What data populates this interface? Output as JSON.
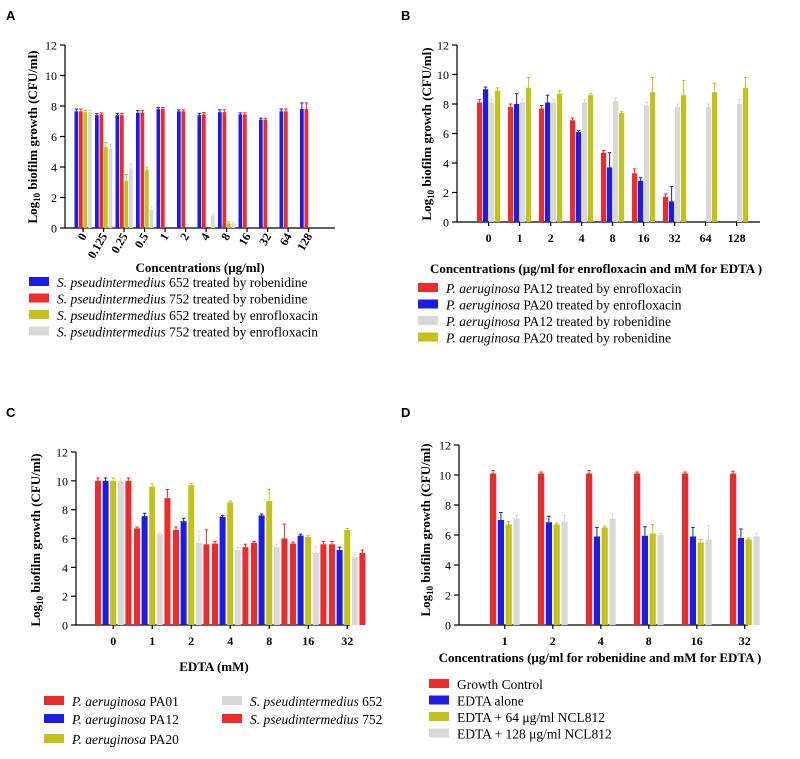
{
  "colors": {
    "red": "#ee2a2a",
    "blue": "#1b1bea",
    "olive": "#c2c21a",
    "gray": "#d8d8d8"
  },
  "chart_data": [
    {
      "panel": "A",
      "type": "bar",
      "title": "",
      "xlabel": "Concentrations (μg/ml)",
      "ylabel": "Log10 biofilm growth (CFU/ml)",
      "ylabel_parts": [
        "Log",
        "10",
        " biofilm growth (CFU/ml)"
      ],
      "ylim": [
        0,
        12
      ],
      "yticks": [
        0,
        2,
        4,
        6,
        8,
        10,
        12
      ],
      "categories": [
        "0",
        "0.125",
        "0.25",
        "0.5",
        "1",
        "2",
        "4",
        "8",
        "16",
        "32",
        "64",
        "128"
      ],
      "series": [
        {
          "name": "S. pseudintermedius 652 treated by robenidine",
          "italic": "S. pseudintermedius",
          "suffix": " 652 treated by robenidine",
          "color": "blue",
          "values": [
            7.65,
            7.4,
            7.4,
            7.55,
            7.8,
            7.65,
            7.4,
            7.6,
            7.45,
            7.1,
            7.65,
            7.8
          ],
          "errors": [
            0.15,
            0.1,
            0.12,
            0.15,
            0.1,
            0.1,
            0.12,
            0.15,
            0.1,
            0.1,
            0.15,
            0.4
          ]
        },
        {
          "name": "S. pseudintermedius 752 treated by robenidine",
          "italic": "S. pseudintermedius",
          "suffix": " 752 treated by robenidine",
          "color": "red",
          "values": [
            7.65,
            7.45,
            7.4,
            7.55,
            7.8,
            7.65,
            7.45,
            7.6,
            7.45,
            7.1,
            7.65,
            7.8
          ],
          "errors": [
            0.15,
            0.1,
            0.12,
            0.15,
            0.1,
            0.1,
            0.12,
            0.15,
            0.1,
            0.1,
            0.15,
            0.4
          ]
        },
        {
          "name": "S. pseudintermedius 652 treated by enrofloxacin",
          "italic": "S. pseudintermedius",
          "suffix": " 652 treated by enrofloxacin",
          "color": "olive",
          "values": [
            7.6,
            5.3,
            3.1,
            3.8,
            0,
            0,
            0,
            0.3,
            0,
            0,
            0,
            0
          ],
          "errors": [
            0.1,
            0.3,
            0.4,
            0.2,
            0,
            0,
            0,
            0.1,
            0,
            0,
            0,
            0
          ]
        },
        {
          "name": "S. pseudintermedius 752 treated by enrofloxacin",
          "italic": "S. pseudintermedius",
          "suffix": " 752 treated by enrofloxacin",
          "color": "gray",
          "values": [
            7.6,
            5.2,
            3.9,
            1.2,
            0,
            0,
            0.8,
            0.3,
            0,
            0,
            0,
            0
          ],
          "errors": [
            0.1,
            0.3,
            0.3,
            0.2,
            0,
            0,
            0.1,
            0.1,
            0,
            0,
            0,
            0
          ]
        }
      ],
      "legend": "below"
    },
    {
      "panel": "B",
      "type": "bar",
      "title": "",
      "xlabel": "Concentrations (μg/ml for enrofloxacin and mM for EDTA )",
      "ylabel": "Log10 biofilm growth (CFU/ml)",
      "ylabel_parts": [
        "Log",
        "10",
        " biofilm growth (CFU/ml)"
      ],
      "ylim": [
        0,
        12
      ],
      "yticks": [
        0,
        2,
        4,
        6,
        8,
        10,
        12
      ],
      "categories": [
        "0",
        "1",
        "2",
        "4",
        "8",
        "16",
        "32",
        "64",
        "128"
      ],
      "series": [
        {
          "name": "P. aeruginosa PA12 treated by enrofloxacin",
          "italic": "P. aeruginosa",
          "suffix": " PA12 treated by enrofloxacin",
          "color": "red",
          "values": [
            8.1,
            7.8,
            7.7,
            6.9,
            4.7,
            3.3,
            1.7,
            0,
            0
          ],
          "errors": [
            0.2,
            0.2,
            0.2,
            0.15,
            0.15,
            0.3,
            0.2,
            0,
            0
          ]
        },
        {
          "name": "P. aeruginosa PA20 treated by enrofloxacin",
          "italic": "P. aeruginosa",
          "suffix": " PA20 treated by enrofloxacin",
          "color": "blue",
          "values": [
            9.0,
            8.0,
            8.1,
            6.1,
            3.7,
            2.8,
            1.4,
            0,
            0
          ],
          "errors": [
            0.15,
            0.7,
            0.5,
            0.1,
            1.0,
            0.2,
            1.0,
            0,
            0
          ]
        },
        {
          "name": "P. aeruginosa PA12 treated by robenidine",
          "italic": "P. aeruginosa",
          "suffix": " PA12 treated by robenidine",
          "color": "gray",
          "values": [
            8.1,
            8.1,
            8.1,
            8.1,
            8.2,
            7.9,
            7.8,
            7.8,
            8.0
          ],
          "errors": [
            0.2,
            0.2,
            0.2,
            0.2,
            0.2,
            0.2,
            0.2,
            0.2,
            0.3
          ]
        },
        {
          "name": "P. aeruginosa PA20 treated by robenidine",
          "italic": "P. aeruginosa",
          "suffix": " PA20 treated by robenidine",
          "color": "olive",
          "values": [
            8.9,
            9.1,
            8.7,
            8.6,
            7.4,
            8.8,
            8.6,
            8.8,
            9.1
          ],
          "errors": [
            0.2,
            0.7,
            0.2,
            0.1,
            0.1,
            1.0,
            1.0,
            0.6,
            0.7
          ]
        }
      ],
      "legend": "below"
    },
    {
      "panel": "C",
      "type": "bar",
      "title": "",
      "xlabel": "EDTA (mM)",
      "ylabel": "Log10 biofilm growth (CFU/ml)",
      "ylabel_parts": [
        "Log",
        "10",
        " biofilm growth (CFU/ml)"
      ],
      "ylim": [
        0,
        12
      ],
      "yticks": [
        0,
        2,
        4,
        6,
        8,
        10,
        12
      ],
      "categories": [
        "0",
        "1",
        "2",
        "4",
        "8",
        "16",
        "32"
      ],
      "series": [
        {
          "name": "P. aeruginosa PA01",
          "italic": "P. aeruginosa",
          "suffix": " PA01",
          "color": "red",
          "values": [
            10.0,
            6.7,
            6.6,
            5.65,
            5.7,
            5.65,
            5.6
          ],
          "errors": [
            0.2,
            0.1,
            0.2,
            0.15,
            0.1,
            0.1,
            0.2
          ]
        },
        {
          "name": "P. aeruginosa PA12",
          "italic": "P. aeruginosa",
          "suffix": " PA12",
          "color": "blue",
          "values": [
            10.0,
            7.55,
            7.2,
            7.5,
            7.6,
            6.2,
            5.2
          ],
          "errors": [
            0.2,
            0.2,
            0.2,
            0.1,
            0.1,
            0.1,
            0.2
          ]
        },
        {
          "name": "P. aeruginosa PA20",
          "italic": "P. aeruginosa",
          "suffix": " PA20",
          "color": "olive",
          "values": [
            10.0,
            9.6,
            9.7,
            8.5,
            8.6,
            6.1,
            6.6
          ],
          "errors": [
            0.2,
            0.2,
            0.1,
            0.1,
            0.8,
            0.1,
            0.1
          ]
        },
        {
          "name": "S. pseudintermedius 652",
          "italic": "S. pseudintermedius",
          "suffix": " 652",
          "color": "gray",
          "values": [
            10.0,
            6.3,
            5.7,
            5.2,
            5.4,
            5.0,
            4.7
          ],
          "errors": [
            0.2,
            0.1,
            0.8,
            0.2,
            0.2,
            0.4,
            0.2
          ]
        },
        {
          "name": "S. pseudintermedius 752",
          "italic": "S. pseudintermedius",
          "suffix": " 752",
          "color": "red",
          "values": [
            10.0,
            8.8,
            5.6,
            5.4,
            6.0,
            5.6,
            5.0
          ],
          "errors": [
            0.2,
            0.6,
            1.0,
            0.2,
            1.0,
            0.2,
            0.2
          ]
        }
      ],
      "legend": "below"
    },
    {
      "panel": "D",
      "type": "bar",
      "title": "",
      "xlabel": "Concentrations (μg/ml for robenidine and mM for EDTA )",
      "ylabel": "Log10 biofilm growth (CFU/ml)",
      "ylabel_parts": [
        "Log",
        "10",
        " biofilm growth (CFU/ml)"
      ],
      "ylim": [
        0,
        12
      ],
      "yticks": [
        0,
        2,
        4,
        6,
        8,
        10,
        12
      ],
      "categories": [
        "1",
        "2",
        "4",
        "8",
        "16",
        "32"
      ],
      "series": [
        {
          "name": "Growth Control",
          "italic": "",
          "suffix": "Growth Control",
          "color": "red",
          "values": [
            10.1,
            10.1,
            10.1,
            10.1,
            10.1,
            10.1
          ],
          "errors": [
            0.2,
            0.1,
            0.2,
            0.1,
            0.1,
            0.15
          ]
        },
        {
          "name": "EDTA alone",
          "italic": "",
          "suffix": "EDTA alone",
          "color": "blue",
          "values": [
            7.0,
            6.85,
            5.9,
            5.95,
            5.9,
            5.8
          ],
          "errors": [
            0.5,
            0.4,
            0.6,
            0.6,
            0.6,
            0.6
          ]
        },
        {
          "name": "EDTA + 64 μg/ml NCL812",
          "italic": "",
          "suffix": "EDTA + 64 μg/ml NCL812",
          "color": "olive",
          "values": [
            6.7,
            6.7,
            6.5,
            6.1,
            5.5,
            5.7
          ],
          "errors": [
            0.2,
            0.1,
            0.1,
            0.6,
            0.2,
            0.1
          ]
        },
        {
          "name": "EDTA + 128 μg/ml NCL812",
          "italic": "",
          "suffix": "EDTA + 128 μg/ml NCL812",
          "color": "gray",
          "values": [
            7.1,
            6.9,
            7.1,
            6.0,
            5.7,
            5.9
          ],
          "errors": [
            0.2,
            0.4,
            0.3,
            0.1,
            0.9,
            0.2
          ]
        }
      ],
      "legend": "below"
    }
  ]
}
